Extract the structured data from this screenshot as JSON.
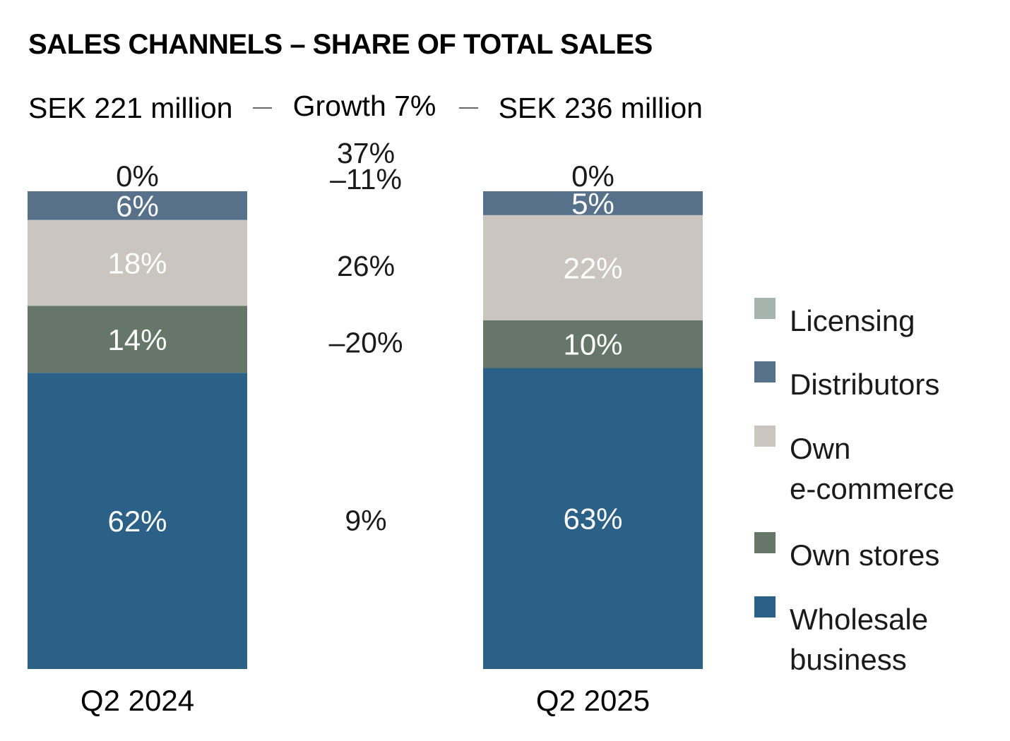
{
  "chart_data": {
    "type": "bar",
    "stacked": true,
    "title": "SALES CHANNELS – SHARE OF TOTAL SALES",
    "totals": {
      "left": "SEK 221 million",
      "middle": "Growth 7%",
      "right": "SEK 236 million"
    },
    "categories": [
      "Q2 2024",
      "Q2 2025"
    ],
    "series": [
      {
        "name": "Wholesale business",
        "values": [
          62,
          63
        ],
        "labels": [
          "62%",
          "63%"
        ],
        "color": "#2b6186",
        "label_color": "#ffffff",
        "growth": "9%"
      },
      {
        "name": "Own stores",
        "values": [
          14,
          10
        ],
        "labels": [
          "14%",
          "10%"
        ],
        "color": "#66776a",
        "label_color": "#ffffff",
        "growth": "–20%"
      },
      {
        "name": "Own e-commerce",
        "values": [
          18,
          22
        ],
        "labels": [
          "18%",
          "22%"
        ],
        "color": "#cac5be",
        "label_color": "#ffffff",
        "growth": "26%"
      },
      {
        "name": "Distributors",
        "values": [
          6,
          5
        ],
        "labels": [
          "6%",
          "5%"
        ],
        "color": "#567189",
        "label_color": "#ffffff",
        "growth": "–11%"
      },
      {
        "name": "Licensing",
        "values": [
          0,
          0
        ],
        "labels": [
          "0%",
          "0%"
        ],
        "color": "#a6b4ae",
        "label_color": "#1a1a1a",
        "growth": "37%"
      }
    ],
    "legend": {
      "position": "right",
      "items": [
        {
          "lines": [
            "Licensing"
          ],
          "color": "#a6b4ae"
        },
        {
          "lines": [
            "Distributors"
          ],
          "color": "#567189"
        },
        {
          "lines": [
            "Own",
            "e-commerce"
          ],
          "color": "#cac5be"
        },
        {
          "lines": [
            "Own stores"
          ],
          "color": "#66776a"
        },
        {
          "lines": [
            "Wholesale",
            "business"
          ],
          "color": "#2b6186"
        }
      ]
    },
    "grid": false
  }
}
